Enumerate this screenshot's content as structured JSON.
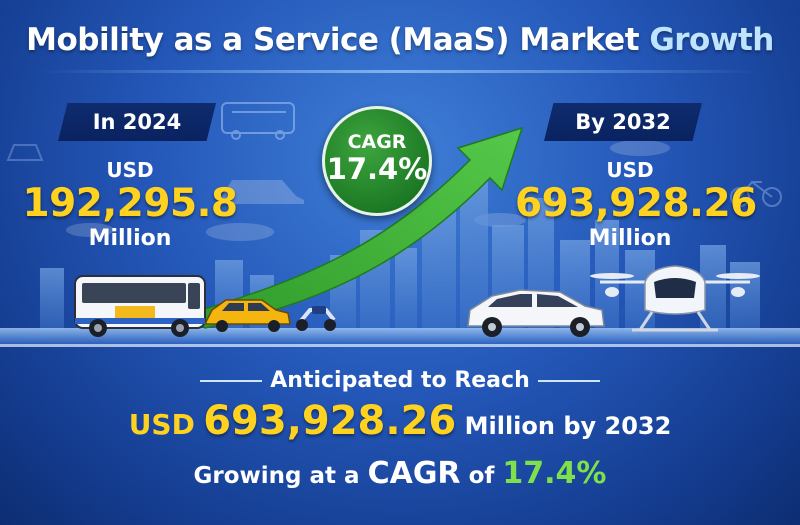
{
  "title": {
    "part1": "Mobility as a Service (MaaS) Market",
    "part2": "Growth"
  },
  "left": {
    "tag": "In 2024",
    "currency": "USD",
    "value": "192,295.8",
    "unit": "Million"
  },
  "right": {
    "tag": "By 2032",
    "currency": "USD",
    "value": "693,928.26",
    "unit": "Million"
  },
  "cagr_badge": {
    "label": "CAGR",
    "value": "17.4%"
  },
  "bottom": {
    "line1": "Anticipated to Reach",
    "line2_usd": "USD",
    "line2_value": "693,928.26",
    "line2_tail": "Million by 2032",
    "line3_pre": "Growing at a",
    "line3_cagr": "CAGR",
    "line3_of": "of",
    "line3_value": "17.4%"
  },
  "colors": {
    "background": "#2457b8",
    "highlight_yellow": "#ffd21f",
    "arrow_green": "#3fb33a",
    "cagr_green": "#7ee04a"
  },
  "icons": [
    "bus-icon",
    "taxi-icon",
    "scooter-icon",
    "car-icon",
    "drone-taxi-icon",
    "bicycle-icon",
    "city-skyline",
    "growth-arrow-icon"
  ]
}
